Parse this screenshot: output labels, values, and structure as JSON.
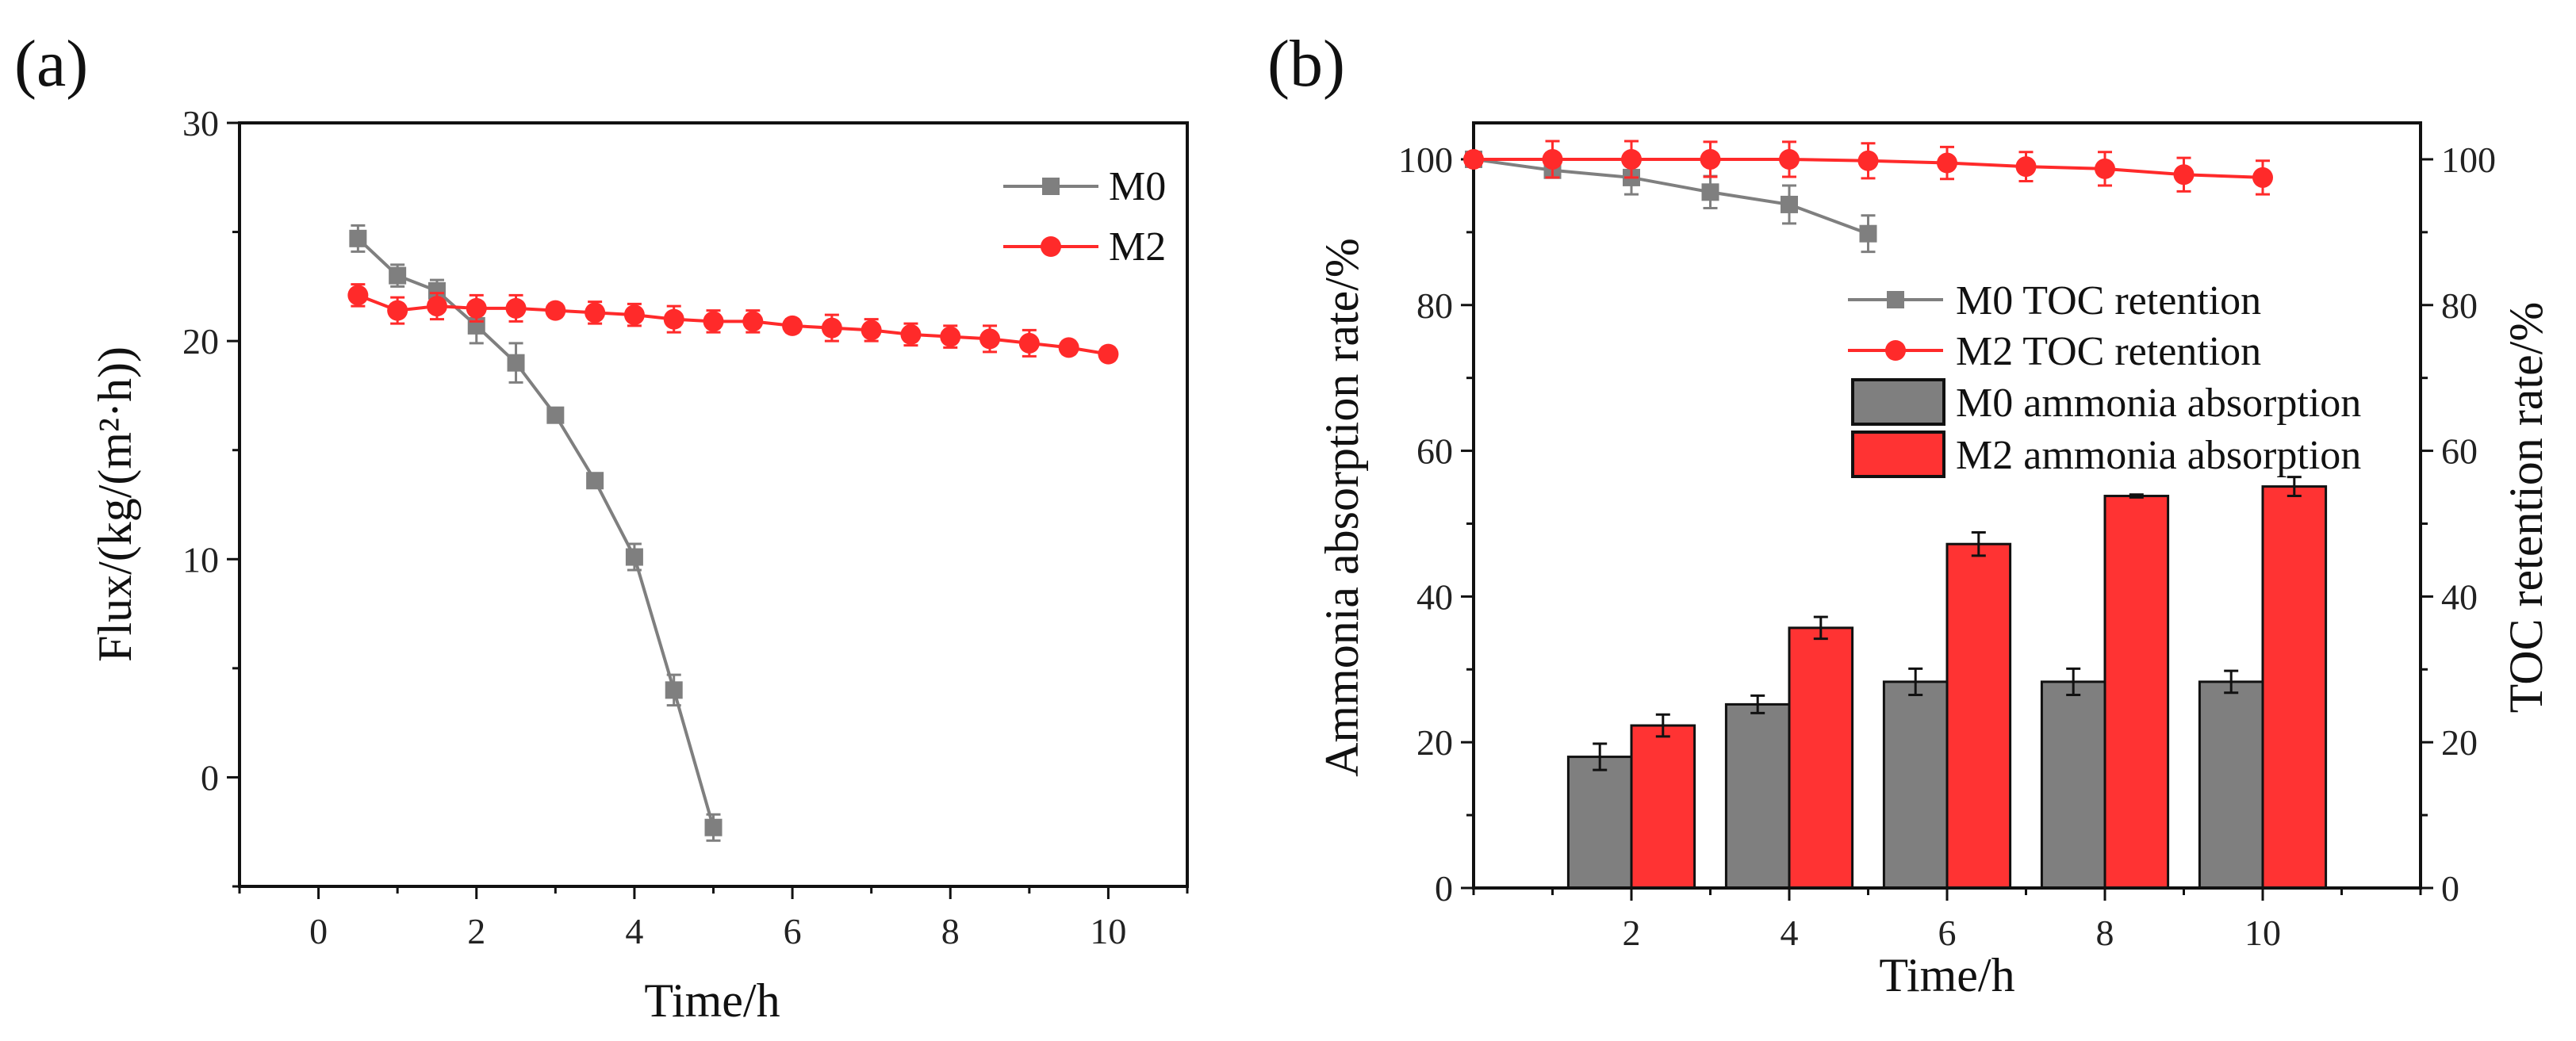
{
  "chart_data": [
    {
      "type": "line",
      "panel_label": "(a)",
      "xlabel": "Time/h",
      "ylabel": "Flux/(kg/(m²·h))",
      "xlim": [
        -1,
        11
      ],
      "ylim": [
        -5,
        30
      ],
      "xticks": [
        0,
        2,
        4,
        6,
        8,
        10
      ],
      "yticks": [
        0,
        10,
        20,
        30
      ],
      "legend_position": "top-right",
      "colors": {
        "M0": "#7f7f7f",
        "M2": "#ff2a2a"
      },
      "series": [
        {
          "name": "M0",
          "marker": "square",
          "x": [
            0.5,
            1,
            1.5,
            2,
            2.5,
            3,
            3.5,
            4,
            4.5,
            5
          ],
          "y": [
            24.7,
            23.0,
            22.3,
            20.7,
            19.0,
            16.6,
            13.6,
            10.1,
            4.0,
            -2.3
          ],
          "err": [
            0.6,
            0.5,
            0.5,
            0.8,
            0.9,
            0.3,
            0.3,
            0.6,
            0.7,
            0.6
          ]
        },
        {
          "name": "M2",
          "marker": "circle",
          "x": [
            0.5,
            1,
            1.5,
            2,
            2.5,
            3,
            3.5,
            4,
            4.5,
            5,
            5.5,
            6,
            6.5,
            7,
            7.5,
            8,
            8.5,
            9,
            9.5,
            10
          ],
          "y": [
            22.1,
            21.4,
            21.6,
            21.5,
            21.5,
            21.4,
            21.3,
            21.2,
            21.0,
            20.9,
            20.9,
            20.7,
            20.6,
            20.5,
            20.3,
            20.2,
            20.1,
            19.9,
            19.7,
            19.4
          ],
          "err": [
            0.5,
            0.6,
            0.6,
            0.6,
            0.6,
            0.3,
            0.5,
            0.5,
            0.6,
            0.5,
            0.5,
            0.3,
            0.6,
            0.5,
            0.5,
            0.5,
            0.6,
            0.6,
            0.3,
            0.3
          ]
        }
      ]
    },
    {
      "type": "bar",
      "panel_label": "(b)",
      "xlabel": "Time/h",
      "ylabel": "Ammonia absorption rate/%",
      "ylabel_right": "TOC retention rate/%",
      "xlim": [
        0,
        12
      ],
      "ylim": [
        0,
        105
      ],
      "xticks": [
        2,
        4,
        6,
        8,
        10
      ],
      "yticks": [
        0,
        20,
        40,
        60,
        80,
        100
      ],
      "legend_position": "center-right",
      "categories": [
        2,
        4,
        6,
        8,
        10
      ],
      "bar_series": [
        {
          "name": "M0 ammonia absorption",
          "color": "#7f7f7f",
          "values": [
            18.0,
            25.2,
            28.3,
            28.3,
            28.3
          ],
          "err": [
            1.8,
            1.2,
            1.8,
            1.8,
            1.5
          ]
        },
        {
          "name": "M2 ammonia absorption",
          "color": "#ff3333",
          "values": [
            22.3,
            35.7,
            47.2,
            53.8,
            55.1
          ],
          "err": [
            1.5,
            1.5,
            1.6,
            0.2,
            1.3
          ]
        }
      ],
      "line_series": [
        {
          "name": "M0 TOC retention",
          "marker": "square",
          "color": "#7f7f7f",
          "x": [
            0,
            1,
            2,
            3,
            4,
            5
          ],
          "y": [
            100,
            98.5,
            97.5,
            95.5,
            93.8,
            89.8
          ],
          "err": [
            0,
            0.3,
            2.3,
            2.2,
            2.6,
            2.5
          ]
        },
        {
          "name": "M2 TOC retention",
          "marker": "circle",
          "color": "#ff2a2a",
          "x": [
            0,
            1,
            2,
            3,
            4,
            5,
            6,
            7,
            8,
            9,
            10
          ],
          "y": [
            100,
            100,
            100,
            100,
            100,
            99.8,
            99.5,
            99.0,
            98.7,
            97.9,
            97.5
          ],
          "err": [
            0,
            2.5,
            2.5,
            2.4,
            2.4,
            2.4,
            2.2,
            2.0,
            2.3,
            2.3,
            2.3
          ]
        }
      ]
    }
  ]
}
